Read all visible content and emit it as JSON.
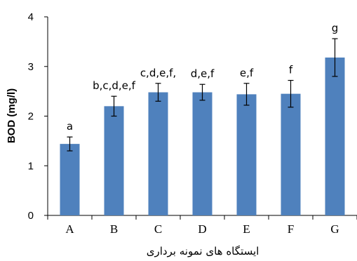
{
  "chart_data": {
    "type": "bar",
    "title": "",
    "xlabel": "ایستگاه های نمونه برداری",
    "ylabel": "BOD (mg/l)",
    "ylim": [
      0,
      4
    ],
    "yticks": [
      "0",
      "1",
      "2",
      "3",
      "4"
    ],
    "grid": false,
    "legend": "none",
    "bar_color": "#4f81bd",
    "categories": [
      "A",
      "B",
      "C",
      "D",
      "E",
      "F",
      "G"
    ],
    "values": [
      1.44,
      2.2,
      2.48,
      2.48,
      2.44,
      2.45,
      3.18
    ],
    "errors": [
      0.14,
      0.2,
      0.18,
      0.16,
      0.22,
      0.27,
      0.38
    ],
    "significance_labels": [
      "a",
      "b,c,d,e,f",
      "c,d,e,f,",
      "d,e,f",
      "e,f",
      "f",
      "g"
    ]
  }
}
